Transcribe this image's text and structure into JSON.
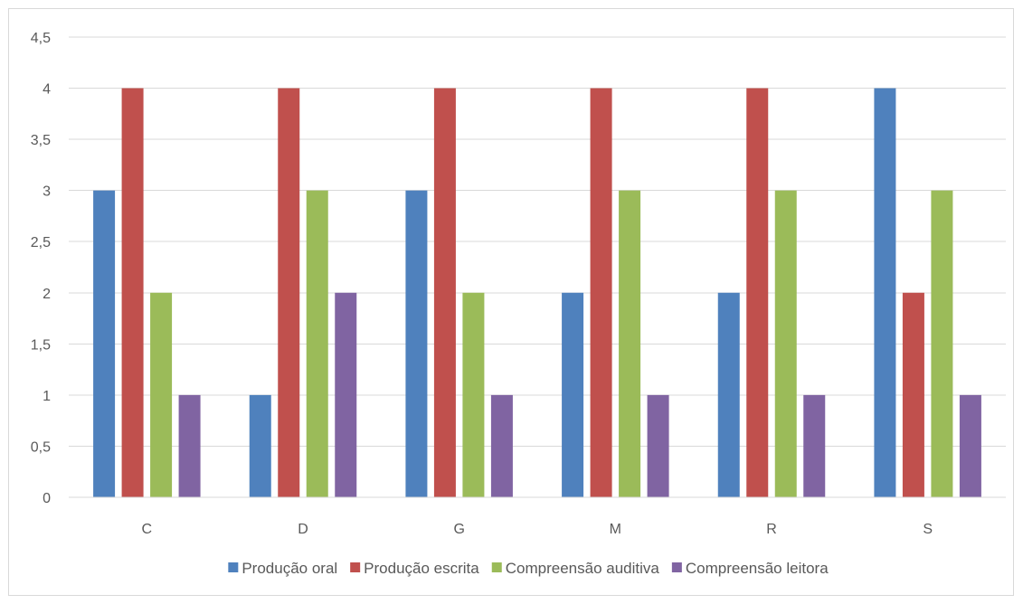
{
  "chart_data": {
    "type": "bar",
    "title": "",
    "xlabel": "",
    "ylabel": "",
    "categories": [
      "C",
      "D",
      "G",
      "M",
      "R",
      "S"
    ],
    "ylim": [
      0,
      4.5
    ],
    "yticks": [
      "0",
      "0,5",
      "1",
      "1,5",
      "2",
      "2,5",
      "3",
      "3,5",
      "4",
      "4,5"
    ],
    "ytick_values": [
      0,
      0.5,
      1,
      1.5,
      2,
      2.5,
      3,
      3.5,
      4,
      4.5
    ],
    "grid": true,
    "legend_position": "bottom",
    "series": [
      {
        "name": "Produção oral",
        "color": "#4f81bd",
        "values": [
          3,
          1,
          3,
          2,
          2,
          4
        ]
      },
      {
        "name": "Produção escrita",
        "color": "#c0504d",
        "values": [
          4,
          4,
          4,
          4,
          4,
          2
        ]
      },
      {
        "name": "Compreensão auditiva",
        "color": "#9bbb59",
        "values": [
          2,
          3,
          2,
          3,
          3,
          3
        ]
      },
      {
        "name": "Compreensão leitora",
        "color": "#8064a2",
        "values": [
          1,
          2,
          1,
          1,
          1,
          1
        ]
      }
    ]
  }
}
